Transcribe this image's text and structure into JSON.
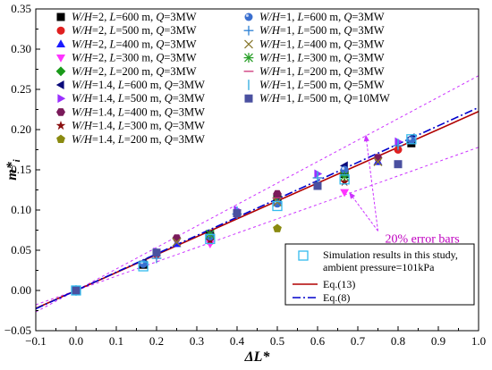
{
  "chart_data": {
    "type": "scatter",
    "xlabel": "ΔL*",
    "ylabel": "m*",
    "ylabel_sub": "i",
    "xlim": [
      -0.1,
      1.0
    ],
    "ylim": [
      -0.05,
      0.35
    ],
    "xticks": [
      "−0.1",
      "0.0",
      "0.1",
      "0.2",
      "0.3",
      "0.4",
      "0.5",
      "0.6",
      "0.7",
      "0.8",
      "0.9",
      "1.0"
    ],
    "xtick_values": [
      -0.1,
      0.0,
      0.1,
      0.2,
      0.3,
      0.4,
      0.5,
      0.6,
      0.7,
      0.8,
      0.9,
      1.0
    ],
    "yticks": [
      "−0.05",
      "0.00",
      "0.05",
      "0.10",
      "0.15",
      "0.20",
      "0.25",
      "0.30",
      "0.35"
    ],
    "ytick_values": [
      -0.05,
      0.0,
      0.05,
      0.1,
      0.15,
      0.2,
      0.25,
      0.3,
      0.35
    ],
    "series": [
      {
        "name": "W/H=2, L=600 m, Q=3MW",
        "label": [
          {
            "t": "W/H",
            "i": true
          },
          {
            "t": "=2, "
          },
          {
            "t": "L",
            "i": true
          },
          {
            "t": "=600 m, "
          },
          {
            "t": "Q",
            "i": true
          },
          {
            "t": "=3MW"
          }
        ],
        "marker": "square",
        "color": "#000000",
        "points": [
          [
            0.0,
            0.0
          ],
          [
            0.167,
            0.032
          ],
          [
            0.333,
            0.068
          ],
          [
            0.5,
            0.115
          ],
          [
            0.667,
            0.145
          ],
          [
            0.833,
            0.183
          ]
        ]
      },
      {
        "name": "W/H=2, L=500 m, Q=3MW",
        "label": [
          {
            "t": "W/H",
            "i": true
          },
          {
            "t": "=2, "
          },
          {
            "t": "L",
            "i": true
          },
          {
            "t": "=500 m, "
          },
          {
            "t": "Q",
            "i": true
          },
          {
            "t": "=3MW"
          }
        ],
        "marker": "circle",
        "color": "#e02020",
        "points": [
          [
            0.0,
            0.0
          ],
          [
            0.2,
            0.045
          ],
          [
            0.4,
            0.095
          ],
          [
            0.6,
            0.13
          ],
          [
            0.8,
            0.175
          ]
        ]
      },
      {
        "name": "W/H=2, L=400 m, Q=3MW",
        "label": [
          {
            "t": "W/H",
            "i": true
          },
          {
            "t": "=2, "
          },
          {
            "t": "L",
            "i": true
          },
          {
            "t": "=400 m, "
          },
          {
            "t": "Q",
            "i": true
          },
          {
            "t": "=3MW"
          }
        ],
        "marker": "triangle-up",
        "color": "#1a1aff",
        "points": [
          [
            0.0,
            0.0
          ],
          [
            0.25,
            0.058
          ],
          [
            0.5,
            0.112
          ],
          [
            0.75,
            0.16
          ]
        ]
      },
      {
        "name": "W/H=2, L=300 m, Q=3MW",
        "label": [
          {
            "t": "W/H",
            "i": true
          },
          {
            "t": "=2, "
          },
          {
            "t": "L",
            "i": true
          },
          {
            "t": "=300 m, "
          },
          {
            "t": "Q",
            "i": true
          },
          {
            "t": "=3MW"
          }
        ],
        "marker": "triangle-down",
        "color": "#ff33ff",
        "points": [
          [
            0.0,
            0.0
          ],
          [
            0.333,
            0.058
          ],
          [
            0.667,
            0.122
          ]
        ]
      },
      {
        "name": "W/H=2, L=200 m, Q=3MW",
        "label": [
          {
            "t": "W/H",
            "i": true
          },
          {
            "t": "=2, "
          },
          {
            "t": "L",
            "i": true
          },
          {
            "t": "=200 m, "
          },
          {
            "t": "Q",
            "i": true
          },
          {
            "t": "=3MW"
          }
        ],
        "marker": "diamond",
        "color": "#1a9a1a",
        "points": [
          [
            0.0,
            0.0
          ],
          [
            0.5,
            0.115
          ]
        ]
      },
      {
        "name": "W/H=1.4, L=600 m, Q=3MW",
        "label": [
          {
            "t": "W/H",
            "i": true
          },
          {
            "t": "=1.4, "
          },
          {
            "t": "L",
            "i": true
          },
          {
            "t": "=600 m, "
          },
          {
            "t": "Q",
            "i": true
          },
          {
            "t": "=3MW"
          }
        ],
        "marker": "triangle-left",
        "color": "#0a0a7a",
        "points": [
          [
            0.0,
            0.0
          ],
          [
            0.167,
            0.035
          ],
          [
            0.333,
            0.07
          ],
          [
            0.5,
            0.11
          ],
          [
            0.667,
            0.155
          ],
          [
            0.833,
            0.19
          ]
        ]
      },
      {
        "name": "W/H=1.4, L=500 m, Q=3MW",
        "label": [
          {
            "t": "W/H",
            "i": true
          },
          {
            "t": "=1.4, "
          },
          {
            "t": "L",
            "i": true
          },
          {
            "t": "=500 m, "
          },
          {
            "t": "Q",
            "i": true
          },
          {
            "t": "=3MW"
          }
        ],
        "marker": "triangle-right",
        "color": "#9b30ff",
        "points": [
          [
            0.0,
            0.0
          ],
          [
            0.2,
            0.048
          ],
          [
            0.4,
            0.1
          ],
          [
            0.6,
            0.145
          ],
          [
            0.8,
            0.185
          ]
        ]
      },
      {
        "name": "W/H=1.4, L=400 m, Q=3MW",
        "label": [
          {
            "t": "W/H",
            "i": true
          },
          {
            "t": "=1.4, "
          },
          {
            "t": "L",
            "i": true
          },
          {
            "t": "=400 m, "
          },
          {
            "t": "Q",
            "i": true
          },
          {
            "t": "=3MW"
          }
        ],
        "marker": "hexagon",
        "color": "#7a1a5a",
        "points": [
          [
            0.0,
            0.0
          ],
          [
            0.25,
            0.065
          ],
          [
            0.5,
            0.12
          ],
          [
            0.75,
            0.165
          ]
        ]
      },
      {
        "name": "W/H=1.4, L=300 m, Q=3MW",
        "label": [
          {
            "t": "W/H",
            "i": true
          },
          {
            "t": "=1.4, "
          },
          {
            "t": "L",
            "i": true
          },
          {
            "t": "=300 m, "
          },
          {
            "t": "Q",
            "i": true
          },
          {
            "t": "=3MW"
          }
        ],
        "marker": "star",
        "color": "#8a1010",
        "points": [
          [
            0.0,
            0.0
          ],
          [
            0.333,
            0.062
          ],
          [
            0.667,
            0.135
          ]
        ]
      },
      {
        "name": "W/H=1.4, L=200 m, Q=3MW",
        "label": [
          {
            "t": "W/H",
            "i": true
          },
          {
            "t": "=1.4, "
          },
          {
            "t": "L",
            "i": true
          },
          {
            "t": "=200 m, "
          },
          {
            "t": "Q",
            "i": true
          },
          {
            "t": "=3MW"
          }
        ],
        "marker": "pentagon",
        "color": "#8a8a10",
        "points": [
          [
            0.0,
            0.0
          ],
          [
            0.5,
            0.077
          ]
        ]
      },
      {
        "name": "W/H=1, L=600 m, Q=3MW",
        "label": [
          {
            "t": "W/H",
            "i": true
          },
          {
            "t": "=1, "
          },
          {
            "t": "L",
            "i": true
          },
          {
            "t": "=600 m, "
          },
          {
            "t": "Q",
            "i": true
          },
          {
            "t": "=3MW"
          }
        ],
        "marker": "sphere",
        "color": "#3a6fcf",
        "points": [
          [
            0.0,
            0.0
          ],
          [
            0.167,
            0.033
          ],
          [
            0.333,
            0.067
          ],
          [
            0.5,
            0.108
          ],
          [
            0.667,
            0.15
          ],
          [
            0.833,
            0.187
          ]
        ]
      },
      {
        "name": "W/H=1, L=500 m, Q=3MW",
        "label": [
          {
            "t": "W/H",
            "i": true
          },
          {
            "t": "=1, "
          },
          {
            "t": "L",
            "i": true
          },
          {
            "t": "=500 m, "
          },
          {
            "t": "Q",
            "i": true
          },
          {
            "t": "=3MW"
          }
        ],
        "marker": "plus",
        "color": "#2a7fd4",
        "points": [
          [
            0.0,
            0.0
          ],
          [
            0.2,
            0.04
          ],
          [
            0.4,
            0.095
          ],
          [
            0.6,
            0.14
          ],
          [
            0.8,
            0.18
          ]
        ]
      },
      {
        "name": "W/H=1, L=400 m, Q=3MW",
        "label": [
          {
            "t": "W/H",
            "i": true
          },
          {
            "t": "=1, "
          },
          {
            "t": "L",
            "i": true
          },
          {
            "t": "=400 m, "
          },
          {
            "t": "Q",
            "i": true
          },
          {
            "t": "=3MW"
          }
        ],
        "marker": "x",
        "color": "#8a7a30",
        "points": [
          [
            0.0,
            0.0
          ],
          [
            0.25,
            0.06
          ],
          [
            0.5,
            0.11
          ],
          [
            0.75,
            0.16
          ]
        ]
      },
      {
        "name": "W/H=1, L=300 m, Q=3MW",
        "label": [
          {
            "t": "W/H",
            "i": true
          },
          {
            "t": "=1, "
          },
          {
            "t": "L",
            "i": true
          },
          {
            "t": "=300 m, "
          },
          {
            "t": "Q",
            "i": true
          },
          {
            "t": "=3MW"
          }
        ],
        "marker": "asterisk",
        "color": "#2aa02a",
        "points": [
          [
            0.0,
            0.0
          ],
          [
            0.333,
            0.07
          ],
          [
            0.667,
            0.142
          ]
        ]
      },
      {
        "name": "W/H=1, L=200 m, Q=3MW",
        "label": [
          {
            "t": "W/H",
            "i": true
          },
          {
            "t": "=1, "
          },
          {
            "t": "L",
            "i": true
          },
          {
            "t": "=200 m, "
          },
          {
            "t": "Q",
            "i": true
          },
          {
            "t": "=3MW"
          }
        ],
        "marker": "dash",
        "color": "#cc3377",
        "points": [
          [
            0.0,
            0.0
          ],
          [
            0.5,
            0.115
          ]
        ]
      },
      {
        "name": "W/H=1, L=500 m, Q=5MW",
        "label": [
          {
            "t": "W/H",
            "i": true
          },
          {
            "t": "=1, "
          },
          {
            "t": "L",
            "i": true
          },
          {
            "t": "=500 m, "
          },
          {
            "t": "Q",
            "i": true
          },
          {
            "t": "=5MW"
          }
        ],
        "marker": "vbar",
        "color": "#3ab0e0",
        "points": [
          [
            0.0,
            0.0
          ],
          [
            0.2,
            0.046
          ],
          [
            0.4,
            0.098
          ],
          [
            0.6,
            0.142
          ],
          [
            0.8,
            0.182
          ]
        ]
      },
      {
        "name": "W/H=1, L=500 m, Q=10MW",
        "label": [
          {
            "t": "W/H",
            "i": true
          },
          {
            "t": "=1, "
          },
          {
            "t": "L",
            "i": true
          },
          {
            "t": "=500 m, "
          },
          {
            "t": "Q",
            "i": true
          },
          {
            "t": "=10MW"
          }
        ],
        "marker": "square",
        "color": "#4a50a0",
        "points": [
          [
            0.0,
            0.0
          ],
          [
            0.2,
            0.047
          ],
          [
            0.4,
            0.096
          ],
          [
            0.6,
            0.13
          ],
          [
            0.8,
            0.157
          ]
        ]
      }
    ],
    "simulation": {
      "points": [
        [
          0.0,
          0.0
        ],
        [
          0.167,
          0.03
        ],
        [
          0.333,
          0.064
        ],
        [
          0.5,
          0.105
        ],
        [
          0.667,
          0.138
        ],
        [
          0.833,
          0.188
        ]
      ],
      "color": "#33bbee"
    },
    "lines": [
      {
        "name": "Eq.(13)",
        "slope": 0.2225,
        "intercept": 0.0,
        "color": "#b00000",
        "dash": "solid"
      },
      {
        "name": "Eq.(8)",
        "slope": 0.2275,
        "intercept": 0.0,
        "color": "#0000cc",
        "dash": "dashdot"
      }
    ],
    "error_bars": {
      "upper_factor": 1.2,
      "lower_factor": 0.8,
      "base_slope": 0.2225,
      "color": "#cc33ff",
      "label": "20% error bars"
    },
    "legend_main": {
      "placement": "top-left"
    },
    "legend_eq": {
      "placement": "bottom-right",
      "simulation_label_line1": "Simulation results in this study,",
      "simulation_label_line2": "ambient pressure=101kPa",
      "eq13_label": "Eq.(13)",
      "eq8_label": "Eq.(8)"
    },
    "annotation": {
      "text": "20% error bars",
      "x": 0.79,
      "y": 0.065
    },
    "grid": false
  }
}
